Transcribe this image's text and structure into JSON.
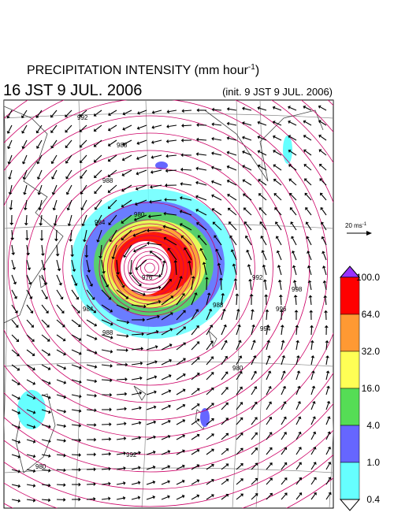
{
  "header": {
    "title": "PRECIPITATION INTENSITY (mm hour",
    "title_sup": "-1",
    "title_end": ")",
    "valid_time": "16 JST 9 JUL. 2006",
    "init_time": "(init. 9 JST 9 JUL. 2006)"
  },
  "vector_scale": {
    "label": "20 ms",
    "sup": "-1"
  },
  "colorbar": {
    "labels": [
      "100.0",
      "64.0",
      "32.0",
      "16.0",
      "4.0",
      "1.0",
      "0.4"
    ],
    "colors": [
      "#ff0000",
      "#ff9933",
      "#ffff55",
      "#55dd55",
      "#6666ff",
      "#66ffff"
    ],
    "over_color": "#9933ff",
    "under_color": "#ffffff"
  },
  "isobar_labels": [
    "992",
    "988",
    "988",
    "984",
    "980",
    "976",
    "984",
    "988",
    "992",
    "994",
    "996",
    "998",
    "988",
    "980",
    "992",
    "980"
  ]
}
